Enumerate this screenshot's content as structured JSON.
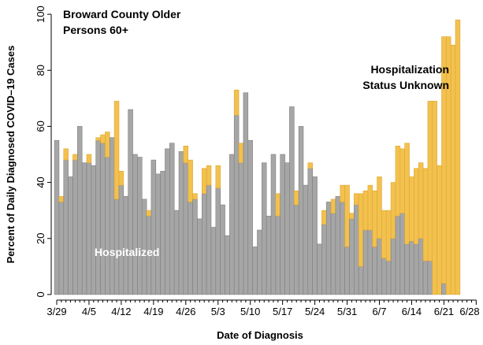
{
  "chart_data": {
    "type": "stacked-bar",
    "title": "Broward County Older Persons 60+",
    "x_label": "Date of Diagnosis",
    "y_label": "Percent of Daily Diagnosed COVID–19 Cases",
    "categories": [
      "3/29",
      null,
      null,
      null,
      null,
      null,
      null,
      "4/5",
      null,
      null,
      null,
      null,
      null,
      null,
      "4/12",
      null,
      null,
      null,
      null,
      null,
      null,
      "4/19",
      null,
      null,
      null,
      null,
      null,
      null,
      "4/26",
      null,
      null,
      null,
      null,
      null,
      null,
      "5/3",
      null,
      null,
      null,
      null,
      null,
      null,
      "5/10",
      null,
      null,
      null,
      null,
      null,
      null,
      "5/17",
      null,
      null,
      null,
      null,
      null,
      null,
      "5/24",
      null,
      null,
      null,
      null,
      null,
      null,
      "5/31",
      null,
      null,
      null,
      null,
      null,
      null,
      "6/7",
      null,
      null,
      null,
      null,
      null,
      null,
      "6/14",
      null,
      null,
      null,
      null,
      null,
      null,
      "6/21",
      null,
      null,
      null,
      null,
      null,
      null,
      "6/28"
    ],
    "series": [
      {
        "name": "Hospitalized",
        "color": "#a6a6a6",
        "values": [
          55,
          33,
          48,
          42,
          48,
          60,
          47,
          47,
          46,
          55,
          54,
          49,
          56,
          34,
          39,
          35,
          66,
          50,
          49,
          34,
          28,
          48,
          43,
          44,
          52,
          54,
          30,
          51,
          47,
          33,
          34,
          27,
          36,
          39,
          24,
          38,
          32,
          21,
          50,
          64,
          47,
          72,
          55,
          17,
          23,
          47,
          28,
          50,
          28,
          50,
          47,
          67,
          32,
          60,
          39,
          45,
          42,
          18,
          25,
          33,
          29,
          35,
          33,
          17,
          27,
          32,
          10,
          23,
          23,
          17,
          20,
          13,
          12,
          20,
          28,
          29,
          18,
          19,
          18,
          20,
          12,
          12,
          0,
          0,
          4,
          0,
          0,
          0,
          null,
          null,
          null,
          null
        ]
      },
      {
        "name": "Hospitalization Status Unknown",
        "color": "#f2c14e",
        "values": [
          0,
          2,
          4,
          0,
          2,
          0,
          0,
          3,
          0,
          1,
          3,
          9,
          0,
          35,
          5,
          0,
          0,
          0,
          0,
          0,
          2,
          0,
          0,
          0,
          0,
          0,
          0,
          0,
          6,
          15,
          2,
          0,
          9,
          7,
          0,
          8,
          0,
          0,
          0,
          9,
          7,
          0,
          0,
          0,
          0,
          0,
          0,
          0,
          8,
          0,
          0,
          0,
          5,
          0,
          0,
          2,
          0,
          0,
          5,
          0,
          5,
          0,
          6,
          22,
          2,
          4,
          26,
          14,
          16,
          20,
          22,
          17,
          18,
          20,
          25,
          23,
          36,
          23,
          27,
          27,
          33,
          57,
          69,
          46,
          88,
          92,
          89,
          98,
          null,
          null,
          null,
          null
        ]
      }
    ],
    "ylim": [
      -2,
      102
    ],
    "yticks": [
      0,
      20,
      40,
      60,
      80,
      100
    ]
  }
}
